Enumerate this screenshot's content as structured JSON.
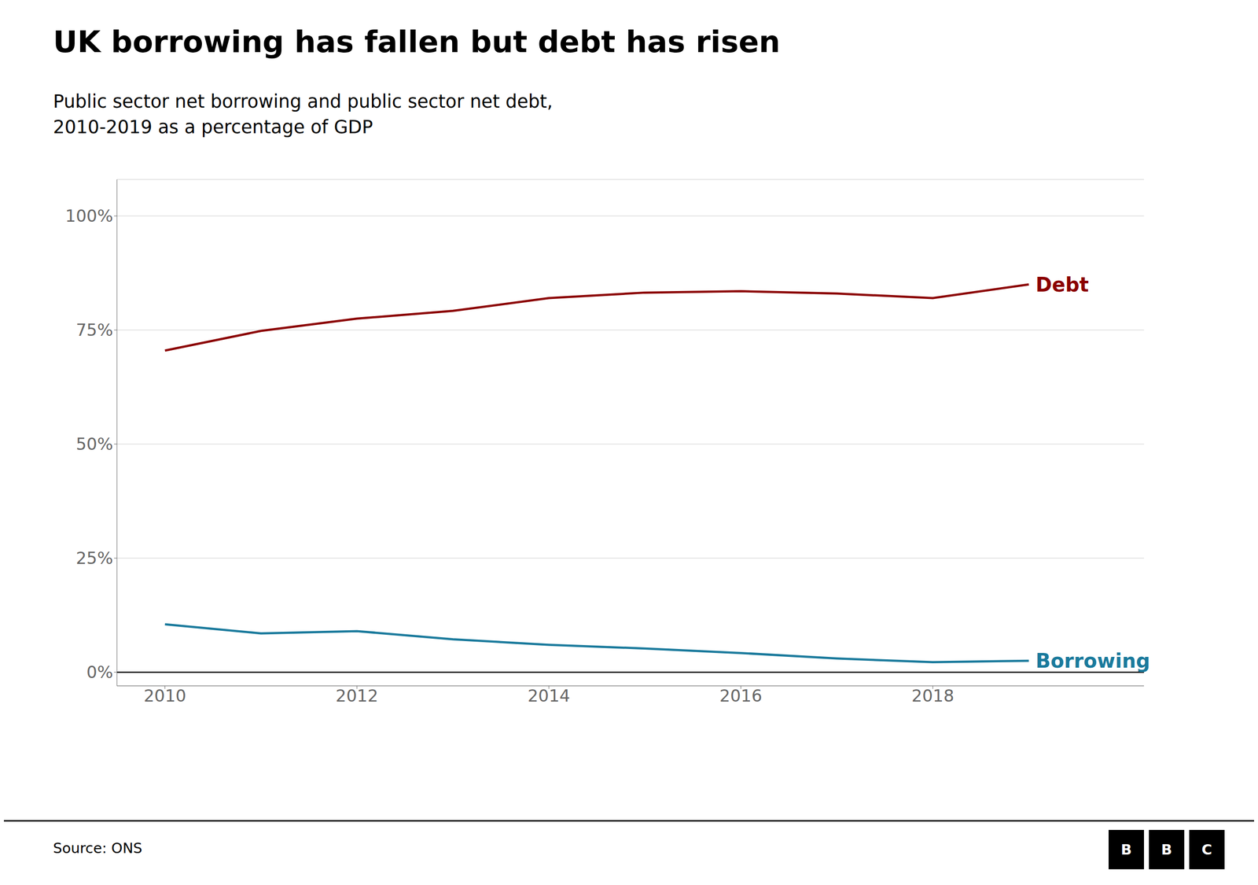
{
  "chart_data": {
    "type": "line",
    "title": "UK borrowing has fallen but debt has risen",
    "subtitle": "Public sector net borrowing and public sector net debt,\n2010-2019 as a percentage of GDP",
    "source": "Source: ONS",
    "annotations": [
      "B",
      "B",
      "C"
    ],
    "x": [
      2010,
      2011,
      2012,
      2013,
      2014,
      2015,
      2016,
      2017,
      2018,
      2019
    ],
    "series": [
      {
        "name": "Debt",
        "color": "#8b0000",
        "values": [
          70.5,
          74.8,
          77.5,
          79.2,
          82.0,
          83.2,
          83.5,
          83.0,
          82.0,
          85.0
        ]
      },
      {
        "name": "Borrowing",
        "color": "#1a7a9c",
        "values": [
          10.5,
          8.5,
          9.0,
          7.2,
          6.0,
          5.2,
          4.2,
          3.0,
          2.2,
          2.5
        ]
      }
    ],
    "xlim": [
      2009.5,
      2020.2
    ],
    "xticks": [
      2010,
      2012,
      2014,
      2016,
      2018
    ],
    "ylim": [
      -3,
      108
    ],
    "yticks": [
      {
        "value": 0,
        "label": "0%"
      },
      {
        "value": 25,
        "label": "25%"
      },
      {
        "value": 50,
        "label": "50%"
      },
      {
        "value": 75,
        "label": "75%"
      },
      {
        "value": 100,
        "label": "100%"
      }
    ],
    "grid": true
  }
}
